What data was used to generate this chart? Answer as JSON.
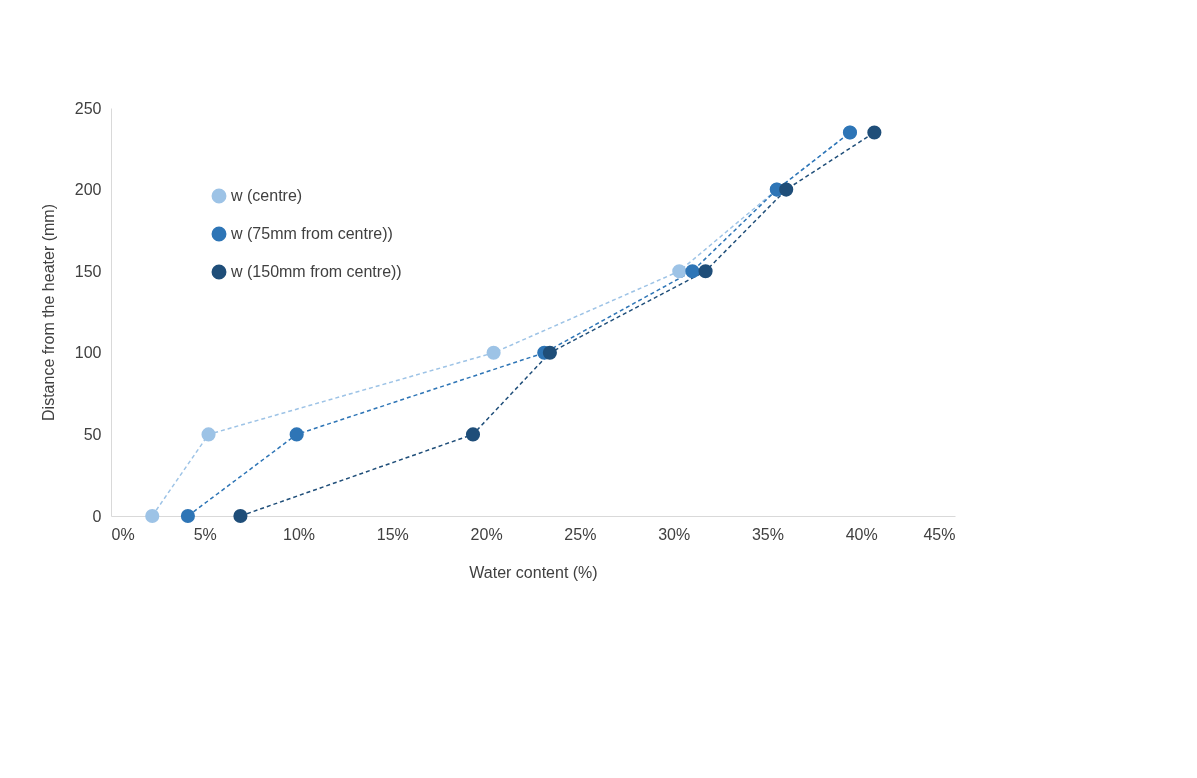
{
  "chart_data": {
    "type": "line",
    "xlabel": "Water content (%)",
    "ylabel": "Distance from the heater (mm)",
    "xlim": [
      0,
      45
    ],
    "xticks": [
      {
        "value": 0,
        "label": "0%"
      },
      {
        "value": 5,
        "label": "5%"
      },
      {
        "value": 10,
        "label": "10%"
      },
      {
        "value": 15,
        "label": "15%"
      },
      {
        "value": 20,
        "label": "20%"
      },
      {
        "value": 25,
        "label": "25%"
      },
      {
        "value": 30,
        "label": "30%"
      },
      {
        "value": 35,
        "label": "35%"
      },
      {
        "value": 40,
        "label": "40%"
      },
      {
        "value": 45,
        "label": "45%"
      }
    ],
    "ylim": [
      0,
      250
    ],
    "yticks": [
      0,
      50,
      100,
      150,
      200,
      250
    ],
    "grid": false,
    "legend": "top left",
    "marker": "circle",
    "line_style": "dashed",
    "series": [
      {
        "name": "w (centre)",
        "color": "#9dc3e6",
        "x": [
          2.2,
          5.2,
          20.4,
          30.3,
          35.5,
          39.4
        ],
        "values": [
          0,
          50,
          100,
          150,
          200,
          235
        ]
      },
      {
        "name": "w (75mm from centre))",
        "color": "#2e75b6",
        "x": [
          4.1,
          9.9,
          23.1,
          31.0,
          35.5,
          39.4
        ],
        "values": [
          0,
          50,
          100,
          150,
          200,
          235
        ]
      },
      {
        "name": "w (150mm from centre))",
        "color": "#1f4e79",
        "x": [
          6.9,
          19.3,
          23.4,
          31.7,
          36.0,
          40.7
        ],
        "values": [
          0,
          50,
          100,
          150,
          200,
          235
        ]
      }
    ]
  }
}
